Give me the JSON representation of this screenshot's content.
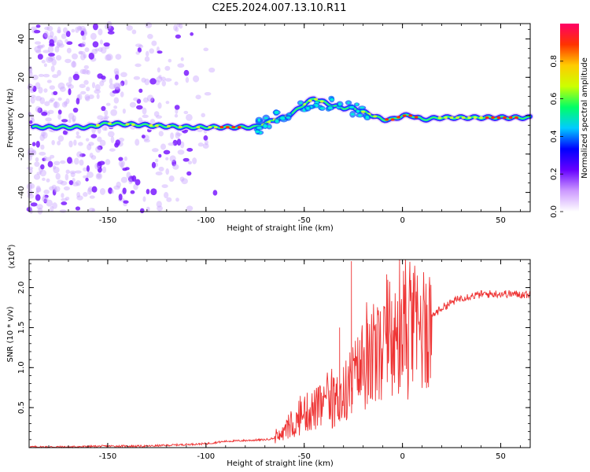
{
  "title": "C2E5.2024.007.13.10.R11",
  "chart_data": [
    {
      "type": "heatmap",
      "xlabel": "Height of straight line (km)",
      "ylabel": "Frequency (Hz)",
      "xlim": [
        -190,
        65
      ],
      "ylim": [
        -50,
        48
      ],
      "xticks": [
        -150,
        -100,
        -50,
        0,
        50
      ],
      "yticks": [
        -40,
        -20,
        0,
        20,
        40
      ],
      "colorbar": {
        "label": "Normalized spectral amplitude",
        "range": [
          0,
          1
        ],
        "ticks": [
          "0.0",
          "0.2",
          "0.4",
          "0.6",
          "0.8"
        ],
        "colormap": [
          "#ffffff",
          "#cc99ff",
          "#6600ff",
          "#0000ff",
          "#00ccff",
          "#00ff66",
          "#ccff00",
          "#ffcc00",
          "#ff3300",
          "#ff0066"
        ]
      },
      "ridge": {
        "x": [
          -190,
          -160,
          -150,
          -130,
          -110,
          -100,
          -90,
          -80,
          -75,
          -70,
          -65,
          -60,
          -55,
          -50,
          -45,
          -40,
          -35,
          -30,
          -25,
          -20,
          -15,
          -10,
          -5,
          0,
          5,
          10,
          20,
          30,
          40,
          50,
          60,
          65
        ],
        "y": [
          -6,
          -6,
          -4,
          -5,
          -6,
          -6,
          -6,
          -6,
          -6,
          -4,
          -2,
          -1,
          2,
          6,
          9,
          7,
          5,
          4,
          4,
          2,
          0,
          -2,
          -2,
          0,
          0,
          -2,
          -1,
          -1,
          -1,
          -1,
          -1,
          -1
        ]
      }
    },
    {
      "type": "line",
      "xlabel": "Height of straight line (km)",
      "ylabel": "SNR (10 * v/v)",
      "yscale_label": "(x10^4)",
      "xlim": [
        -190,
        65
      ],
      "ylim": [
        0,
        2.35
      ],
      "xticks": [
        -150,
        -100,
        -50,
        0,
        50
      ],
      "yticks": [
        0.5,
        1.0,
        1.5,
        2.0
      ],
      "ytick_labels": [
        "0.5",
        "1.0",
        "1.5",
        "2.0"
      ],
      "series": [
        {
          "color": "#ee3333",
          "x": [
            -190,
            -170,
            -150,
            -130,
            -110,
            -100,
            -90,
            -80,
            -70,
            -65,
            -60,
            -55,
            -50,
            -45,
            -40,
            -35,
            -30,
            -25,
            -20,
            -15,
            -10,
            -5,
            0,
            5,
            10,
            15,
            20,
            25,
            30,
            35,
            40,
            50,
            60,
            65
          ],
          "y": [
            0.01,
            0.01,
            0.02,
            0.02,
            0.04,
            0.05,
            0.08,
            0.09,
            0.1,
            0.12,
            0.2,
            0.3,
            0.45,
            0.5,
            0.55,
            0.6,
            0.7,
            0.9,
            1.05,
            1.15,
            1.25,
            1.3,
            1.45,
            1.5,
            1.6,
            1.65,
            1.75,
            1.82,
            1.88,
            1.9,
            1.92,
            1.93,
            1.92,
            1.92
          ],
          "spikes": [
            {
              "x": -26,
              "y": 2.33
            },
            {
              "x": -32,
              "y": 1.5
            },
            {
              "x": -18,
              "y": 1.6
            },
            {
              "x": -12,
              "y": 1.55
            }
          ]
        }
      ]
    }
  ]
}
